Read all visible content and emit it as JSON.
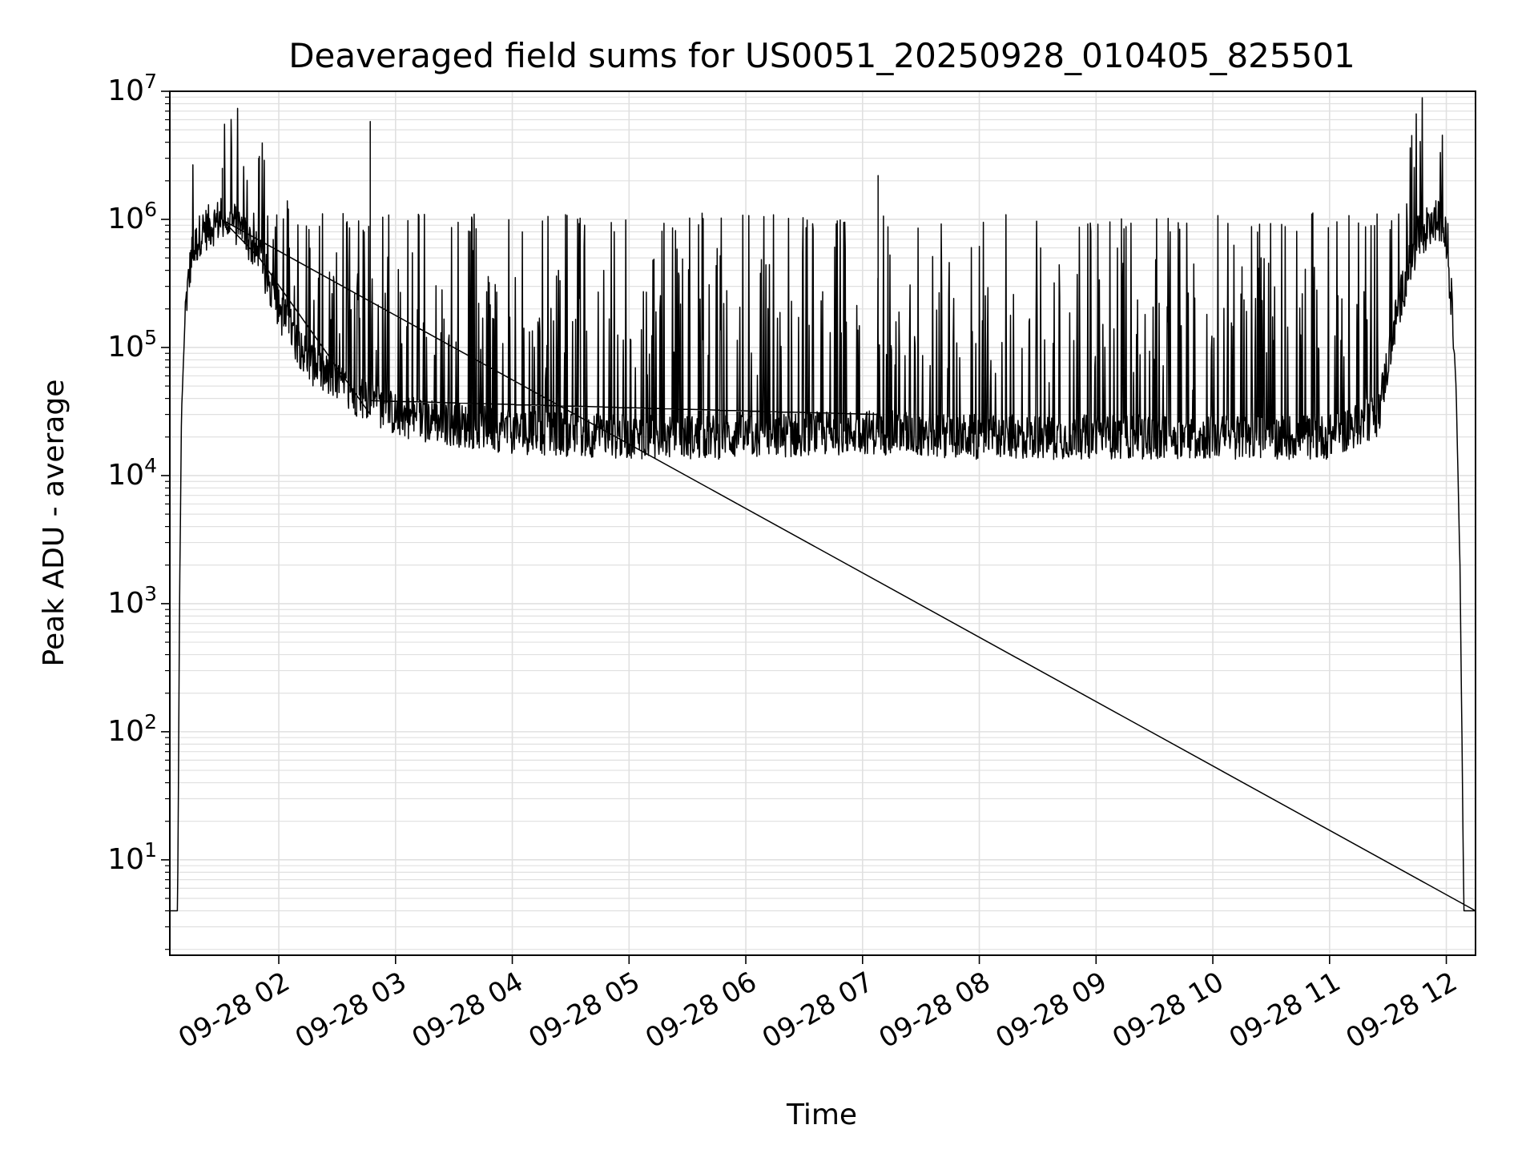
{
  "chart_data": {
    "type": "line",
    "title": "Deaveraged field sums for US0051_20250928_010405_825501",
    "xlabel": "Time",
    "ylabel": "Peak ADU - average",
    "yscale": "log",
    "ylim": [
      1.8,
      10000000
    ],
    "xlim": [
      "2025-09-28 01:04",
      "2025-09-28 12:15"
    ],
    "y_ticks": [
      {
        "base": "10",
        "exp": "1",
        "value": 10
      },
      {
        "base": "10",
        "exp": "2",
        "value": 100
      },
      {
        "base": "10",
        "exp": "3",
        "value": 1000
      },
      {
        "base": "10",
        "exp": "4",
        "value": 10000
      },
      {
        "base": "10",
        "exp": "5",
        "value": 100000
      },
      {
        "base": "10",
        "exp": "6",
        "value": 1000000
      },
      {
        "base": "10",
        "exp": "7",
        "value": 10000000
      }
    ],
    "x_ticks": [
      {
        "label": "09-28 02",
        "time": "2025-09-28 02:00"
      },
      {
        "label": "09-28 03",
        "time": "2025-09-28 03:00"
      },
      {
        "label": "09-28 04",
        "time": "2025-09-28 04:00"
      },
      {
        "label": "09-28 05",
        "time": "2025-09-28 05:00"
      },
      {
        "label": "09-28 06",
        "time": "2025-09-28 06:00"
      },
      {
        "label": "09-28 07",
        "time": "2025-09-28 07:00"
      },
      {
        "label": "09-28 08",
        "time": "2025-09-28 08:00"
      },
      {
        "label": "09-28 09",
        "time": "2025-09-28 09:00"
      },
      {
        "label": "09-28 10",
        "time": "2025-09-28 10:00"
      },
      {
        "label": "09-28 11",
        "time": "2025-09-28 11:00"
      },
      {
        "label": "09-28 12",
        "time": "2025-09-28 12:00"
      }
    ],
    "grid": true,
    "legend": "none",
    "line_color": "#000000",
    "series": [
      {
        "x": [
          "2025-09-28 01:04",
          "2025-09-28 01:07",
          "2025-09-28 01:08",
          "2025-09-28 01:09",
          "2025-09-28 01:10",
          "2025-09-28 01:12",
          "2025-09-28 01:15",
          "2025-09-28 01:20",
          "2025-09-28 01:30",
          "2025-09-28 01:40",
          "2025-09-28 01:50",
          "2025-09-28 02:00",
          "2025-09-28 02:15",
          "2025-09-28 02:30",
          "2025-09-28 02:45",
          "2025-09-28 03:00",
          "2025-09-28 03:30",
          "2025-09-28 04:00",
          "2025-09-28 05:00",
          "2025-09-28 06:00",
          "2025-09-28 07:00",
          "2025-09-28 08:00",
          "2025-09-28 09:00",
          "2025-09-28 10:00",
          "2025-09-28 11:00",
          "2025-09-28 11:25",
          "2025-09-28 11:35",
          "2025-09-28 11:45",
          "2025-09-28 11:55",
          "2025-09-28 12:00",
          "2025-09-28 12:03",
          "2025-09-28 12:05",
          "2025-09-28 12:07",
          "2025-09-28 12:08",
          "2025-09-28 12:09",
          "2025-09-28 12:10",
          "2025-09-28 12:15"
        ],
        "y": [
          4,
          4,
          4,
          1000,
          30000,
          200000,
          500000,
          800000,
          1000000,
          900000,
          500000,
          200000,
          80000,
          50000,
          40000,
          30000,
          25000,
          22000,
          20000,
          20000,
          22000,
          20000,
          20000,
          20000,
          20000,
          30000,
          200000,
          700000,
          1000000,
          700000,
          200000,
          50000,
          2000,
          100,
          4,
          4,
          4
        ]
      }
    ],
    "annotations": "Dense noisy trace with frequent narrow spikes up to about 1e6, a few reaching 2e6-6e6 near 01:40 and 02:45, and a noise floor around 1.5e4-3e4 between 03:00 and 11:25."
  }
}
